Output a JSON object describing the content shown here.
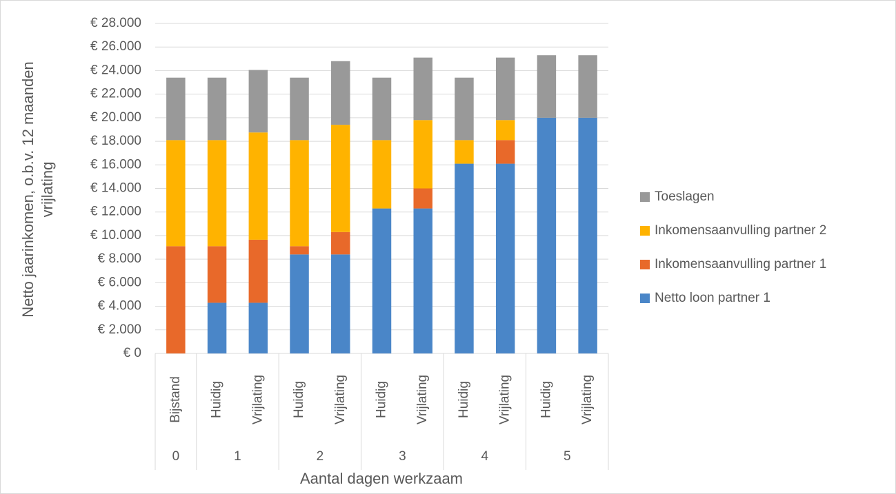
{
  "chart_data": {
    "type": "stacked-bar",
    "y_label": "Netto jaarinkomen, o.b.v. 12 maanden vrijlating",
    "x_label": "Aantal dagen werkzaam",
    "groups": [
      {
        "label": "0",
        "categories": [
          "Bijstand"
        ]
      },
      {
        "label": "1",
        "categories": [
          "Huidig",
          "Vrijlating"
        ]
      },
      {
        "label": "2",
        "categories": [
          "Huidig",
          "Vrijlating"
        ]
      },
      {
        "label": "3",
        "categories": [
          "Huidig",
          "Vrijlating"
        ]
      },
      {
        "label": "4",
        "categories": [
          "Huidig",
          "Vrijlating"
        ]
      },
      {
        "label": "5",
        "categories": [
          "Huidig",
          "Vrijlating"
        ]
      }
    ],
    "series": [
      {
        "name": "Netto loon partner 1",
        "color": "#4a86c8",
        "values": [
          0,
          4300,
          4300,
          8400,
          8400,
          12300,
          12300,
          16100,
          16100,
          20000,
          20000
        ]
      },
      {
        "name": "Inkomensaanvulling partner 1",
        "color": "#e8692a",
        "values": [
          9100,
          4800,
          5350,
          700,
          1900,
          0,
          1700,
          0,
          2000,
          0,
          0
        ]
      },
      {
        "name": "Inkomensaanvulling partner 2",
        "color": "#ffb300",
        "values": [
          9000,
          9000,
          9100,
          9000,
          9100,
          5800,
          5800,
          2000,
          1700,
          0,
          0
        ]
      },
      {
        "name": "Toeslagen",
        "color": "#999999",
        "values": [
          5300,
          5300,
          5300,
          5300,
          5400,
          5300,
          5300,
          5300,
          5300,
          5300,
          5300
        ]
      }
    ],
    "ylim": [
      0,
      28000
    ],
    "yticks": [
      {
        "value": 0,
        "label": "€ 0"
      },
      {
        "value": 2000,
        "label": "€ 2.000"
      },
      {
        "value": 4000,
        "label": "€ 4.000"
      },
      {
        "value": 6000,
        "label": "€ 6.000"
      },
      {
        "value": 8000,
        "label": "€ 8.000"
      },
      {
        "value": 10000,
        "label": "€ 10.000"
      },
      {
        "value": 12000,
        "label": "€ 12.000"
      },
      {
        "value": 14000,
        "label": "€ 14.000"
      },
      {
        "value": 16000,
        "label": "€ 16.000"
      },
      {
        "value": 18000,
        "label": "€ 18.000"
      },
      {
        "value": 20000,
        "label": "€ 20.000"
      },
      {
        "value": 22000,
        "label": "€ 22.000"
      },
      {
        "value": 24000,
        "label": "€ 24.000"
      },
      {
        "value": 26000,
        "label": "€ 26.000"
      },
      {
        "value": 28000,
        "label": "€ 28.000"
      }
    ],
    "grid": true,
    "legend": "right"
  }
}
